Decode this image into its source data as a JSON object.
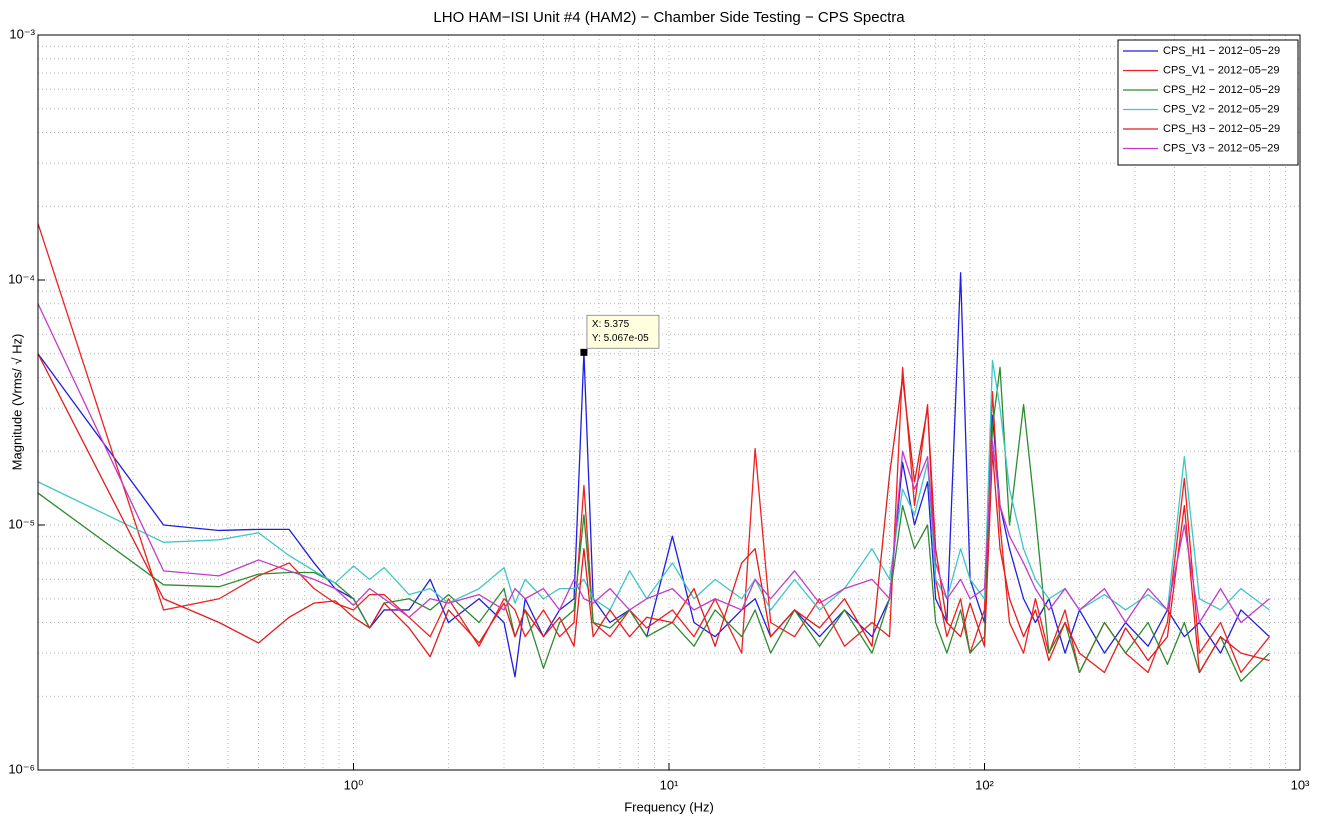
{
  "chart_data": {
    "type": "line",
    "title": "LHO HAM−ISI Unit #4 (HAM2) − Chamber Side Testing − CPS Spectra",
    "x_label": "Frequency (Hz)",
    "y_label": "Magnitude (Vrms/ √ Hz)",
    "x_scale": "log",
    "y_scale": "log",
    "grid": true,
    "legend": "upper right",
    "xlim": [
      0.1,
      1000
    ],
    "ylim": [
      1e-06,
      0.001
    ],
    "xticks": [
      {
        "value": 1,
        "label": "10⁰"
      },
      {
        "value": 10,
        "label": "10¹"
      },
      {
        "value": 100,
        "label": "10²"
      },
      {
        "value": 1000,
        "label": "10³"
      }
    ],
    "yticks": [
      {
        "value": 1e-06,
        "label": "10⁻⁶"
      },
      {
        "value": 1e-05,
        "label": "10⁻⁵"
      },
      {
        "value": 0.0001,
        "label": "10⁻⁴"
      },
      {
        "value": 0.001,
        "label": "10⁻³"
      }
    ],
    "xminorticks": [
      0.2,
      0.3,
      0.4,
      0.5,
      0.6,
      0.7,
      0.8,
      0.9,
      2,
      3,
      4,
      5,
      6,
      7,
      8,
      9,
      20,
      30,
      40,
      50,
      60,
      70,
      80,
      90,
      200,
      300,
      400,
      500,
      600,
      700,
      800,
      900
    ],
    "yminorticks": [
      2e-06,
      3e-06,
      4e-06,
      5e-06,
      6e-06,
      7e-06,
      8e-06,
      9e-06,
      2e-05,
      3e-05,
      4e-05,
      5e-05,
      6e-05,
      7e-05,
      8e-05,
      9e-05,
      0.0002,
      0.0003,
      0.0004,
      0.0005,
      0.0006,
      0.0007,
      0.0008,
      0.0009
    ],
    "x": [
      0.1,
      0.25,
      0.375,
      0.5,
      0.625,
      0.75,
      0.875,
      1,
      1.125,
      1.25,
      1.5,
      1.75,
      2,
      2.5,
      3,
      3.25,
      3.5,
      4,
      4.5,
      5,
      5.375,
      5.75,
      6.5,
      7.5,
      8.5,
      10.25,
      12,
      14,
      17,
      18.75,
      21,
      25,
      30,
      36,
      44,
      50,
      55,
      60,
      66,
      70,
      76,
      84,
      90,
      100,
      106,
      112,
      120,
      133,
      145,
      160,
      180,
      200,
      240,
      280,
      330,
      380,
      430,
      480,
      560,
      650,
      800
    ],
    "series": [
      {
        "name": "CPS_H1 − 2012−05−29",
        "color": "#1f1fe0",
        "values": [
          5e-05,
          1e-05,
          9.5e-06,
          9.6e-06,
          9.6e-06,
          7e-06,
          5.5e-06,
          5e-06,
          3.8e-06,
          4.5e-06,
          4.5e-06,
          6e-06,
          4e-06,
          5e-06,
          4e-06,
          2.4e-06,
          5e-06,
          3.5e-06,
          4.5e-06,
          5e-06,
          5.067e-05,
          5e-06,
          4e-06,
          4.5e-06,
          3.5e-06,
          9e-06,
          4e-06,
          3.5e-06,
          4.5e-06,
          5e-06,
          3.5e-06,
          4.5e-06,
          3.5e-06,
          4.5e-06,
          3.5e-06,
          5e-06,
          1.8e-05,
          1e-05,
          1.5e-05,
          5e-06,
          4e-06,
          0.000107,
          6e-06,
          4e-06,
          2.8e-05,
          1.2e-05,
          8e-06,
          5e-06,
          4e-06,
          5e-06,
          3e-06,
          4.5e-06,
          3e-06,
          4e-06,
          3.2e-06,
          4.5e-06,
          3.5e-06,
          4e-06,
          3e-06,
          4.5e-06,
          3.5e-06
        ]
      },
      {
        "name": "CPS_V1 − 2012−05−29",
        "color": "#f02020",
        "values": [
          0.00017,
          4.5e-06,
          5e-06,
          6.2e-06,
          7e-06,
          5.5e-06,
          4.8e-06,
          4.5e-06,
          5.2e-06,
          5.2e-06,
          4.2e-06,
          3.5e-06,
          5e-06,
          3.2e-06,
          5e-06,
          4.5e-06,
          3.5e-06,
          4.5e-06,
          3.5e-06,
          4e-06,
          1.45e-05,
          4e-06,
          3.5e-06,
          4.5e-06,
          3.8e-06,
          4.5e-06,
          3.5e-06,
          5e-06,
          3e-06,
          2.05e-05,
          4e-06,
          3.5e-06,
          5e-06,
          3.2e-06,
          4e-06,
          3.5e-06,
          4.4e-05,
          1.2e-05,
          3.1e-05,
          6e-06,
          3.5e-06,
          5e-06,
          3e-06,
          4.5e-06,
          3.5e-05,
          1e-05,
          4e-06,
          3e-06,
          5e-06,
          3e-06,
          4.5e-06,
          2.5e-06,
          4e-06,
          3e-06,
          2.5e-06,
          4e-06,
          1.55e-05,
          3e-06,
          4e-06,
          2.5e-06,
          3.5e-06
        ]
      },
      {
        "name": "CPS_H2 − 2012−05−29",
        "color": "#2e8b2e",
        "values": [
          1.35e-05,
          5.7e-06,
          5.6e-06,
          6.3e-06,
          6.4e-06,
          6.4e-06,
          5.8e-06,
          5e-06,
          3.8e-06,
          4.8e-06,
          5e-06,
          4.5e-06,
          5.2e-06,
          4e-06,
          5.5e-06,
          3.5e-06,
          4.5e-06,
          2.6e-06,
          4e-06,
          4.5e-06,
          1.1e-05,
          4e-06,
          3.8e-06,
          4.5e-06,
          3.5e-06,
          4e-06,
          3.2e-06,
          4.5e-06,
          3.5e-06,
          4.5e-06,
          3e-06,
          4.5e-06,
          3.2e-06,
          4.5e-06,
          3e-06,
          5e-06,
          1.2e-05,
          8e-06,
          1e-05,
          4e-06,
          3e-06,
          4.5e-06,
          3e-06,
          3.5e-06,
          2.5e-05,
          4.4e-05,
          1e-05,
          3.1e-05,
          1.1e-05,
          3e-06,
          4e-06,
          2.5e-06,
          4e-06,
          3e-06,
          4e-06,
          2.7e-06,
          4e-06,
          2.5e-06,
          3.5e-06,
          2.3e-06,
          3e-06
        ]
      },
      {
        "name": "CPS_V2 − 2012−05−29",
        "color": "#3fc6c6",
        "values": [
          1.5e-05,
          8.5e-06,
          8.7e-06,
          9.3e-06,
          7.5e-06,
          6.5e-06,
          5.8e-06,
          6.8e-06,
          6e-06,
          6.7e-06,
          5.2e-06,
          5.5e-06,
          4.8e-06,
          5.5e-06,
          6.7e-06,
          4.8e-06,
          6e-06,
          5e-06,
          5.5e-06,
          5.5e-06,
          6e-06,
          5e-06,
          4.5e-06,
          6.5e-06,
          5e-06,
          7e-06,
          5e-06,
          6e-06,
          5e-06,
          6e-06,
          4.5e-06,
          6e-06,
          4.5e-06,
          5.5e-06,
          8e-06,
          6e-06,
          1.4e-05,
          1.1e-05,
          1.8e-05,
          6e-06,
          5e-06,
          8e-06,
          6e-06,
          5e-06,
          4.7e-05,
          3e-05,
          1.4e-05,
          8e-06,
          6e-06,
          5e-06,
          5.5e-06,
          4.5e-06,
          5.2e-06,
          4.5e-06,
          5.2e-06,
          4.5e-06,
          1.9e-05,
          5e-06,
          4.5e-06,
          5.5e-06,
          4.5e-06
        ]
      },
      {
        "name": "CPS_H3 − 2012−05−29",
        "color": "#e21c1c",
        "values": [
          5e-05,
          5e-06,
          4e-06,
          3.3e-06,
          4.2e-06,
          4.8e-06,
          4.9e-06,
          4.2e-06,
          3.8e-06,
          4.8e-06,
          3.8e-06,
          2.9e-06,
          4.5e-06,
          3.3e-06,
          4.8e-06,
          3.5e-06,
          4.5e-06,
          3.5e-06,
          4.2e-06,
          3.2e-06,
          8e-06,
          3.5e-06,
          4.5e-06,
          3.5e-06,
          4.2e-06,
          4e-06,
          5.5e-06,
          3.2e-06,
          7e-06,
          8e-06,
          3.5e-06,
          4.5e-06,
          3.8e-06,
          5e-06,
          3.2e-06,
          1.6e-05,
          4e-05,
          1.5e-05,
          3e-05,
          8e-06,
          4e-06,
          3.5e-06,
          4.8e-06,
          3.2e-06,
          2e-05,
          8e-06,
          5e-06,
          3.5e-06,
          4.5e-06,
          2.8e-06,
          4e-06,
          3e-06,
          2.5e-06,
          3.8e-06,
          2.8e-06,
          3.5e-06,
          1.2e-05,
          2.5e-06,
          3.5e-06,
          3e-06,
          2.8e-06
        ]
      },
      {
        "name": "CPS_V3 − 2012−05−29",
        "color": "#c23cc9",
        "values": [
          8e-05,
          6.5e-06,
          6.2e-06,
          7.2e-06,
          6.5e-06,
          6e-06,
          5.5e-06,
          4.7e-06,
          5.5e-06,
          5e-06,
          4.2e-06,
          5e-06,
          4.8e-06,
          5.2e-06,
          4.5e-06,
          5.5e-06,
          5e-06,
          5.5e-06,
          4.5e-06,
          6e-06,
          5e-06,
          4.8e-06,
          5.5e-06,
          4.5e-06,
          5e-06,
          5.5e-06,
          4.5e-06,
          5e-06,
          4.5e-06,
          6e-06,
          5e-06,
          6.5e-06,
          4.8e-06,
          5.5e-06,
          6e-06,
          5e-06,
          2e-05,
          1.4e-05,
          1.9e-05,
          7e-06,
          5e-06,
          6e-06,
          5e-06,
          5.5e-06,
          2.2e-05,
          1.2e-05,
          9e-06,
          7e-06,
          5.5e-06,
          4.5e-06,
          5.5e-06,
          4.5e-06,
          5.5e-06,
          4e-06,
          5.5e-06,
          4.5e-06,
          1e-05,
          4e-06,
          5.5e-06,
          4e-06,
          5e-06
        ]
      }
    ],
    "annotation": {
      "x": 5.375,
      "y": 5.067e-05,
      "label_x": "X: 5.375",
      "label_y": "Y: 5.067e-05"
    }
  }
}
